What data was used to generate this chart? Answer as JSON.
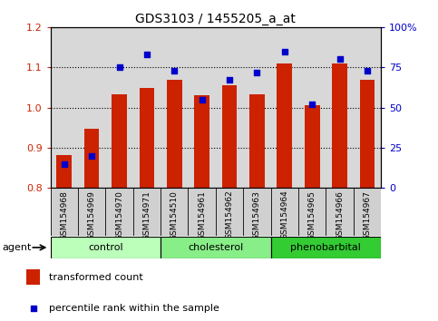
{
  "title": "GDS3103 / 1455205_a_at",
  "categories": [
    "GSM154968",
    "GSM154969",
    "GSM154970",
    "GSM154971",
    "GSM154510",
    "GSM154961",
    "GSM154962",
    "GSM154963",
    "GSM154964",
    "GSM154965",
    "GSM154966",
    "GSM154967"
  ],
  "bar_values": [
    0.882,
    0.948,
    1.032,
    1.048,
    1.068,
    1.03,
    1.055,
    1.032,
    1.11,
    1.005,
    1.11,
    1.068
  ],
  "marker_values": [
    15,
    20,
    75,
    83,
    73,
    55,
    67,
    72,
    85,
    52,
    80,
    73
  ],
  "bar_color": "#cc2200",
  "marker_color": "#0000cc",
  "ylim_left": [
    0.8,
    1.2
  ],
  "ylim_right": [
    0,
    100
  ],
  "yticks_left": [
    0.8,
    0.9,
    1.0,
    1.1,
    1.2
  ],
  "yticks_right": [
    0,
    25,
    50,
    75,
    100
  ],
  "ytick_labels_right": [
    "0",
    "25",
    "50",
    "75",
    "100%"
  ],
  "groups": [
    {
      "label": "control",
      "start": 0,
      "end": 3,
      "color": "#bbffbb"
    },
    {
      "label": "cholesterol",
      "start": 4,
      "end": 7,
      "color": "#88ee88"
    },
    {
      "label": "phenobarbital",
      "start": 8,
      "end": 11,
      "color": "#33cc33"
    }
  ],
  "agent_label": "agent",
  "legend_bar_label": "transformed count",
  "legend_marker_label": "percentile rank within the sample",
  "bar_width": 0.55,
  "tick_label_color_left": "#cc2200",
  "tick_label_color_right": "#0000cc",
  "background_color": "#ffffff",
  "plot_bg_color": "#d8d8d8",
  "xtick_bg_color": "#d0d0d0"
}
